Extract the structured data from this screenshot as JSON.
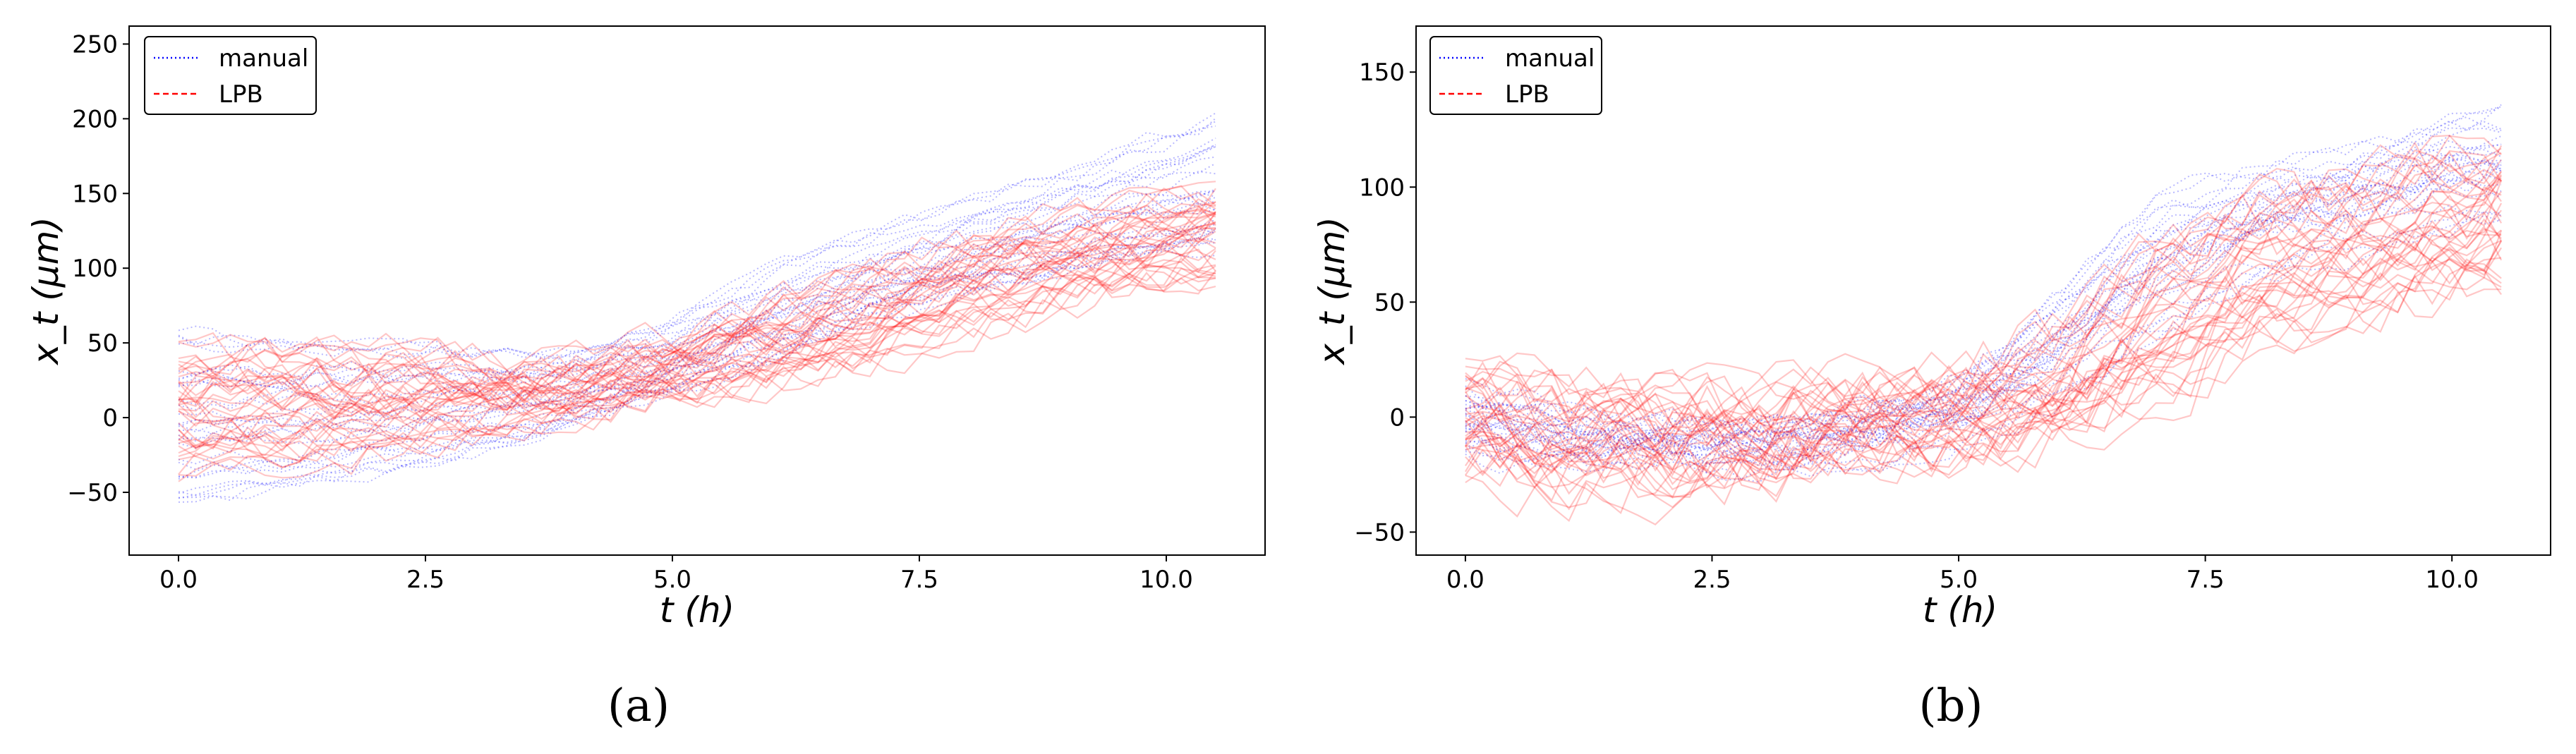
{
  "chart_data": [
    {
      "type": "line",
      "panel": "(a)",
      "xlabel": "t (h)",
      "ylabel": "x_t (μm)",
      "xlim": [
        -0.5,
        11.0
      ],
      "ylim": [
        -92,
        262
      ],
      "xticks": [
        0.0,
        2.5,
        5.0,
        7.5,
        10.0
      ],
      "xtick_labels": [
        "0.0",
        "2.5",
        "5.0",
        "7.5",
        "10.0"
      ],
      "yticks": [
        -50,
        0,
        50,
        100,
        150,
        200,
        250
      ],
      "ytick_labels": [
        "−50",
        "0",
        "50",
        "100",
        "150",
        "200",
        "250"
      ],
      "legend": {
        "position": "top-left",
        "entries": [
          {
            "label": "manual",
            "color": "#0000ff",
            "style": "dotted"
          },
          {
            "label": "LPB",
            "color": "#ff0000",
            "style": "dashed"
          }
        ]
      },
      "series": [
        {
          "name": "manual",
          "color": "#0000ff",
          "x": [
            0.0,
            1.0,
            2.0,
            3.0,
            4.0,
            5.0,
            6.0,
            7.0,
            8.0,
            9.0,
            10.0,
            10.5
          ],
          "mean": [
            0,
            3,
            7,
            12,
            22,
            42,
            70,
            95,
            115,
            132,
            150,
            158
          ],
          "spread": [
            55,
            50,
            45,
            35,
            25,
            25,
            30,
            30,
            30,
            35,
            40,
            45
          ],
          "count": 30
        },
        {
          "name": "LPB",
          "color": "#ff0000",
          "x": [
            0.0,
            1.0,
            2.0,
            3.0,
            4.0,
            5.0,
            6.0,
            7.0,
            8.0,
            9.0,
            10.0,
            10.5
          ],
          "mean": [
            5,
            8,
            10,
            14,
            18,
            30,
            48,
            68,
            90,
            105,
            118,
            125
          ],
          "spread": [
            40,
            38,
            35,
            25,
            20,
            20,
            25,
            30,
            30,
            30,
            30,
            30
          ],
          "count": 38
        }
      ]
    },
    {
      "type": "line",
      "panel": "(b)",
      "xlabel": "t (h)",
      "ylabel": "x_t (μm)",
      "xlim": [
        -0.5,
        11.0
      ],
      "ylim": [
        -60,
        170
      ],
      "xticks": [
        0.0,
        2.5,
        5.0,
        7.5,
        10.0
      ],
      "xtick_labels": [
        "0.0",
        "2.5",
        "5.0",
        "7.5",
        "10.0"
      ],
      "yticks": [
        -50,
        0,
        50,
        100,
        150
      ],
      "ytick_labels": [
        "−50",
        "0",
        "50",
        "100",
        "150"
      ],
      "legend": {
        "position": "top-left",
        "entries": [
          {
            "label": "manual",
            "color": "#0000ff",
            "style": "dotted"
          },
          {
            "label": "LPB",
            "color": "#ff0000",
            "style": "dashed"
          }
        ]
      },
      "series": [
        {
          "name": "manual",
          "color": "#0000ff",
          "x": [
            0.0,
            1.0,
            2.0,
            3.0,
            4.0,
            5.0,
            6.0,
            7.0,
            8.0,
            9.0,
            10.0,
            10.5
          ],
          "mean": [
            -2,
            -10,
            -12,
            -12,
            -8,
            2,
            30,
            65,
            85,
            95,
            105,
            108
          ],
          "spread": [
            15,
            12,
            10,
            10,
            12,
            15,
            25,
            30,
            25,
            25,
            25,
            25
          ],
          "count": 28
        },
        {
          "name": "LPB",
          "color": "#ff0000",
          "x": [
            0.0,
            1.0,
            2.0,
            3.0,
            4.0,
            5.0,
            6.0,
            7.0,
            8.0,
            9.0,
            10.0,
            10.5
          ],
          "mean": [
            0,
            -10,
            -10,
            -8,
            -2,
            2,
            15,
            40,
            65,
            75,
            85,
            90
          ],
          "spread": [
            20,
            20,
            18,
            18,
            18,
            18,
            25,
            30,
            30,
            30,
            30,
            30
          ],
          "count": 38
        }
      ]
    }
  ]
}
